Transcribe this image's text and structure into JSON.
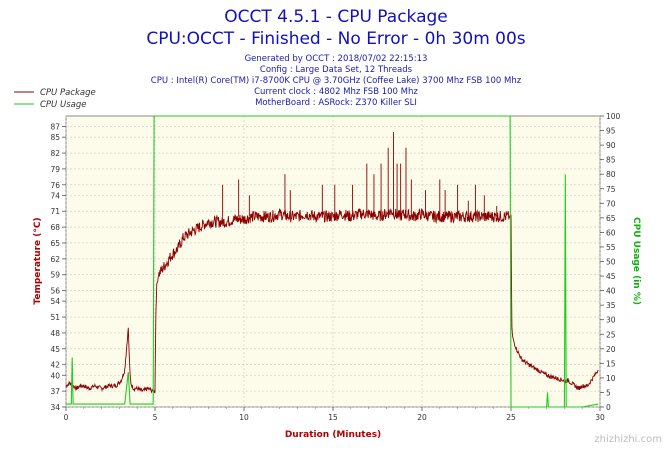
{
  "colors": {
    "title": "#1010c0",
    "info": "#1a1ab0",
    "temp_series": "#8b0000",
    "usage_series": "#22cc22",
    "left_axis_label": "#b00000",
    "right_axis_label": "#10b010",
    "x_axis_label": "#b00000",
    "plot_bg": "#fdfbea",
    "grid": "#c8c8c8",
    "axis_text": "#333333"
  },
  "header": {
    "title_line1": "OCCT 4.5.1 - CPU Package",
    "title_line2": "CPU:OCCT - Finished - No Error - 0h 30m 00s",
    "info_lines": [
      "Generated by OCCT : 2018/07/02 22:15:13",
      "Config : Large Data Set, 12 Threads",
      "CPU : Intel(R) Core(TM) i7-8700K CPU @ 3.70GHz (Coffee Lake) 3700 Mhz FSB 100 Mhz",
      "Current clock : 4802 Mhz FSB 100 Mhz",
      "MotherBoard : ASRock: Z370 Killer SLI"
    ]
  },
  "watermark": "zhizhizhi.com",
  "chart_data": {
    "type": "line",
    "title": "OCCT 4.5.1 - CPU Package",
    "subtitle": "CPU:OCCT - Finished - No Error - 0h 30m 00s",
    "xlabel": "Duration (Minutes)",
    "ylabel_left": "Temperature (°C)",
    "ylabel_right": "CPU Usage (in %)",
    "xlim": [
      0,
      30
    ],
    "ylim_left": [
      34,
      89
    ],
    "ylim_right": [
      0,
      100
    ],
    "x_ticks": [
      0,
      5,
      10,
      15,
      20,
      25,
      30
    ],
    "y_left_ticks": [
      34,
      37,
      40,
      42,
      45,
      48,
      51,
      54,
      56,
      59,
      62,
      65,
      68,
      71,
      74,
      76,
      79,
      82,
      85,
      87
    ],
    "y_right_ticks": [
      0,
      5,
      10,
      15,
      20,
      25,
      30,
      35,
      40,
      45,
      50,
      55,
      60,
      65,
      70,
      75,
      80,
      85,
      90,
      95,
      100
    ],
    "grid": true,
    "legend_position": "top-left",
    "series": [
      {
        "name": "CPU Package",
        "axis": "left",
        "x": [
          0,
          0.2,
          0.4,
          0.6,
          0.8,
          1.0,
          1.3,
          1.6,
          2.0,
          2.4,
          2.8,
          3.1,
          3.3,
          3.4,
          3.5,
          3.55,
          3.6,
          3.65,
          3.7,
          3.8,
          4.0,
          4.3,
          4.6,
          4.9,
          5.0,
          5.05,
          5.1,
          5.2,
          5.4,
          5.6,
          5.8,
          6.0,
          6.3,
          6.6,
          7.0,
          7.5,
          8.0,
          8.5,
          9.0,
          9.5,
          10.0,
          10.5,
          11.0,
          11.5,
          12.0,
          12.5,
          13.0,
          13.5,
          14.0,
          14.5,
          15.0,
          15.5,
          16.0,
          16.5,
          17.0,
          17.5,
          18.0,
          18.3,
          18.5,
          18.7,
          19.0,
          19.5,
          20.0,
          20.5,
          21.0,
          21.5,
          22.0,
          22.5,
          23.0,
          23.5,
          24.0,
          24.5,
          24.8,
          24.9,
          25.0,
          25.05,
          25.1,
          25.3,
          25.6,
          26.0,
          26.5,
          27.0,
          27.5,
          28.0,
          28.2,
          28.4,
          28.6,
          28.8,
          29.0,
          29.3,
          29.5,
          29.7,
          29.9
        ],
        "y": [
          38,
          38.5,
          38,
          37.5,
          38,
          38,
          37.5,
          38,
          37.5,
          38,
          38,
          39,
          41,
          45,
          49,
          44,
          40,
          38.5,
          38,
          37.5,
          37.5,
          37,
          37.5,
          37,
          37,
          52,
          57,
          59,
          60,
          61,
          62,
          63,
          64,
          66,
          67,
          68,
          69,
          69,
          69,
          69.5,
          69.5,
          70,
          70,
          70,
          70.5,
          70,
          70,
          70.5,
          70,
          70,
          70,
          70.5,
          70,
          70.5,
          70.5,
          70,
          70.5,
          71,
          70.5,
          70,
          70.5,
          70,
          70.5,
          70,
          70,
          70,
          70,
          70,
          70,
          70,
          70,
          70,
          70,
          70,
          70,
          49,
          47,
          45,
          43,
          42,
          41,
          40,
          39.5,
          39,
          39,
          38.5,
          38,
          37.5,
          38,
          38,
          39,
          40,
          41
        ]
      },
      {
        "name": "CPU Usage",
        "axis": "right",
        "x": [
          0,
          0.3,
          0.35,
          0.4,
          0.6,
          1.0,
          3.3,
          3.5,
          3.6,
          3.7,
          4.9,
          4.95,
          5.0,
          24.9,
          24.95,
          25.0,
          26.0,
          27.0,
          27.05,
          27.1,
          28.0,
          28.05,
          28.1,
          29.0,
          29.9
        ],
        "y": [
          1,
          1,
          17,
          1,
          1,
          1,
          1,
          12,
          1,
          1,
          1,
          100,
          100,
          100,
          100,
          0,
          0,
          0,
          5,
          0,
          0,
          80,
          0,
          0,
          1
        ]
      }
    ],
    "spikes_temperature": {
      "x": [
        8.8,
        9.7,
        10.3,
        12.3,
        12.6,
        14.4,
        15.1,
        16.1,
        16.9,
        17.3,
        17.7,
        18.1,
        18.4,
        18.6,
        18.8,
        19.1,
        19.4,
        20.2,
        21.0,
        21.3,
        22.0,
        22.6,
        23.0,
        23.5,
        24.2
      ],
      "y": [
        76,
        77,
        74,
        78,
        75,
        76,
        76,
        76,
        80,
        78,
        80,
        83,
        86,
        80,
        80,
        83,
        77,
        75,
        77,
        75,
        76,
        73,
        76,
        74,
        72
      ]
    }
  }
}
